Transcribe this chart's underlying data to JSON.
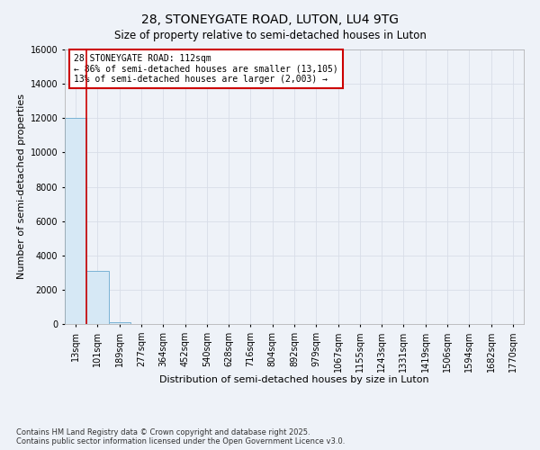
{
  "title": "28, STONEYGATE ROAD, LUTON, LU4 9TG",
  "subtitle": "Size of property relative to semi-detached houses in Luton",
  "xlabel": "Distribution of semi-detached houses by size in Luton",
  "ylabel": "Number of semi-detached properties",
  "bar_color": "#d6e8f5",
  "bar_edge_color": "#7ab3d4",
  "categories": [
    "13sqm",
    "101sqm",
    "189sqm",
    "277sqm",
    "364sqm",
    "452sqm",
    "540sqm",
    "628sqm",
    "716sqm",
    "804sqm",
    "892sqm",
    "979sqm",
    "1067sqm",
    "1155sqm",
    "1243sqm",
    "1331sqm",
    "1419sqm",
    "1506sqm",
    "1594sqm",
    "1682sqm",
    "1770sqm"
  ],
  "values": [
    12000,
    3100,
    100,
    20,
    5,
    2,
    1,
    1,
    0,
    0,
    0,
    0,
    0,
    0,
    0,
    0,
    0,
    0,
    0,
    0,
    0
  ],
  "ylim": [
    0,
    16000
  ],
  "yticks": [
    0,
    2000,
    4000,
    6000,
    8000,
    10000,
    12000,
    14000,
    16000
  ],
  "red_line_x": 0.5,
  "annotation_line1": "28 STONEYGATE ROAD: 112sqm",
  "annotation_line2": "← 86% of semi-detached houses are smaller (13,105)",
  "annotation_line3": "13% of semi-detached houses are larger (2,003) →",
  "annotation_box_color": "#ffffff",
  "annotation_border_color": "#cc0000",
  "footer_text": "Contains HM Land Registry data © Crown copyright and database right 2025.\nContains public sector information licensed under the Open Government Licence v3.0.",
  "background_color": "#eef2f8",
  "grid_color": "#d8dde8",
  "title_fontsize": 10,
  "subtitle_fontsize": 8.5,
  "xlabel_fontsize": 8,
  "ylabel_fontsize": 8,
  "tick_fontsize": 7,
  "annotation_fontsize": 7,
  "footer_fontsize": 6
}
